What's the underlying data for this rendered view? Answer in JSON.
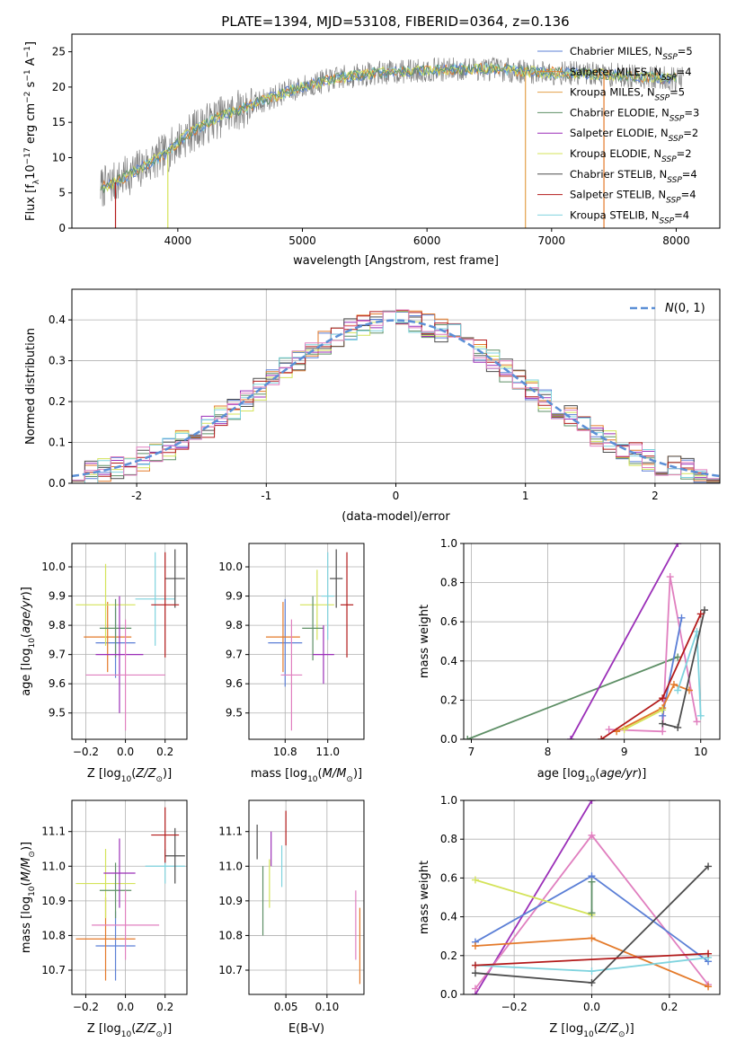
{
  "title": "PLATE=1394, MJD=53108, FIBERID=0364, z=0.136",
  "colors": {
    "chabrier_miles": "#5b7fd6",
    "salpeter_miles": "#e47a2a",
    "kroupa_miles": "#e3a04a",
    "chabrier_elodie": "#5e8f66",
    "salpeter_elodie": "#9b2fb8",
    "kroupa_elodie": "#d4e35a",
    "chabrier_stelib": "#4d4d4d",
    "salpeter_stelib": "#b31a1a",
    "kroupa_stelib": "#7fd3de",
    "pink": "#e07fbf",
    "gaussian": "#5b8fd6",
    "grid": "#b0b0b0",
    "spectrum_data": "#808080"
  },
  "chart_data": [
    {
      "id": "spectrum",
      "type": "line",
      "title": "PLATE=1394, MJD=53108, FIBERID=0364, z=0.136",
      "xlabel": "wavelength [Angstrom, rest frame]",
      "ylabel": "Flux [fλ10⁻¹⁷ erg cm⁻² s⁻¹ A⁻¹]",
      "xlim": [
        3150,
        8350
      ],
      "ylim": [
        0,
        27.5
      ],
      "xticks": [
        4000,
        5000,
        6000,
        7000,
        8000
      ],
      "yticks": [
        0,
        5,
        10,
        15,
        20,
        25
      ],
      "legend": {
        "position": "upper-right",
        "entries": [
          "Chabrier MILES, N_SSP=5",
          "Salpeter MILES, N_SSP=4",
          "Kroupa MILES, N_SSP=5",
          "Chabrier ELODIE, N_SSP=3",
          "Salpeter ELODIE, N_SSP=2",
          "Kroupa ELODIE, N_SSP=2",
          "Chabrier STELIB, N_SSP=4",
          "Salpeter STELIB, N_SSP=4",
          "Kroupa STELIB, N_SSP=4"
        ]
      },
      "continuum_x": [
        3350,
        3500,
        3700,
        3900,
        4000,
        4100,
        4300,
        4600,
        4900,
        5100,
        5300,
        5600,
        5900,
        6200,
        6500,
        6800,
        7100,
        7400,
        7700,
        8000,
        8100
      ],
      "continuum_y": [
        5.5,
        6.5,
        8.5,
        10.5,
        12.2,
        13.5,
        15.5,
        17.5,
        19.5,
        20.5,
        21.3,
        22.0,
        22.3,
        22.5,
        22.6,
        22.2,
        22.0,
        21.8,
        21.5,
        21.2,
        21.2
      ]
    },
    {
      "id": "residuals",
      "type": "histogram",
      "xlabel": "(data-model)/error",
      "ylabel": "Normed distribution",
      "xlim": [
        -2.5,
        2.5
      ],
      "ylim": [
        0,
        0.475
      ],
      "xticks": [
        -2,
        -1,
        0,
        1,
        2
      ],
      "yticks": [
        0.0,
        0.1,
        0.2,
        0.3,
        0.4
      ],
      "legend": {
        "position": "upper-right",
        "entries": [
          "N(0,1)"
        ]
      },
      "bin_width": 0.1
    },
    {
      "id": "age_vs_Z",
      "type": "errorbar",
      "xlabel": "Z [log10(Z/Z⊙)]",
      "ylabel": "age  [log10(age/yr)]",
      "xlim": [
        -0.27,
        0.31
      ],
      "ylim": [
        9.41,
        10.08
      ],
      "xticks": [
        -0.2,
        0.0,
        0.2
      ],
      "xticklabels": [
        "−0.2",
        "0.0",
        "0.2"
      ],
      "yticks": [
        9.5,
        9.6,
        9.7,
        9.8,
        9.9,
        10.0
      ],
      "points": [
        {
          "color": "chabrier_miles",
          "x": -0.05,
          "xerr": 0.1,
          "y": 9.74,
          "yerr": 0.12
        },
        {
          "color": "salpeter_miles",
          "x": -0.09,
          "xerr": 0.12,
          "y": 9.76,
          "yerr": 0.12
        },
        {
          "color": "kroupa_elodie",
          "x": -0.1,
          "xerr": 0.15,
          "y": 9.87,
          "yerr": 0.14
        },
        {
          "color": "chabrier_elodie",
          "x": -0.05,
          "xerr": 0.08,
          "y": 9.79,
          "yerr": 0.1
        },
        {
          "color": "salpeter_elodie",
          "x": -0.03,
          "xerr": 0.12,
          "y": 9.7,
          "yerr": 0.2
        },
        {
          "color": "pink",
          "x": 0.0,
          "xerr": 0.2,
          "y": 9.63,
          "yerr": 0.19
        },
        {
          "color": "kroupa_stelib",
          "x": 0.15,
          "xerr": 0.1,
          "y": 9.89,
          "yerr": 0.16
        },
        {
          "color": "chabrier_stelib",
          "x": 0.25,
          "xerr": 0.05,
          "y": 9.96,
          "yerr": 0.1
        },
        {
          "color": "salpeter_stelib",
          "x": 0.2,
          "xerr": 0.07,
          "y": 9.87,
          "yerr": 0.18
        }
      ]
    },
    {
      "id": "age_vs_mass",
      "type": "errorbar",
      "xlabel": "mass [log10(M/M⊙)]",
      "ylabel": "",
      "xlim": [
        10.63,
        11.17
      ],
      "ylim": [
        9.41,
        10.08
      ],
      "xticks": [
        10.8,
        11.0
      ],
      "xticklabels": [
        "10.8",
        "11.0"
      ],
      "yticks": [
        9.5,
        9.6,
        9.7,
        9.8,
        9.9,
        10.0
      ],
      "points": [
        {
          "color": "chabrier_miles",
          "x": 10.8,
          "xerr": 0.08,
          "y": 9.74,
          "yerr": 0.15
        },
        {
          "color": "salpeter_miles",
          "x": 10.79,
          "xerr": 0.08,
          "y": 9.76,
          "yerr": 0.12
        },
        {
          "color": "kroupa_elodie",
          "x": 10.95,
          "xerr": 0.08,
          "y": 9.87,
          "yerr": 0.12
        },
        {
          "color": "chabrier_elodie",
          "x": 10.93,
          "xerr": 0.05,
          "y": 9.79,
          "yerr": 0.11
        },
        {
          "color": "salpeter_elodie",
          "x": 10.98,
          "xerr": 0.05,
          "y": 9.7,
          "yerr": 0.1
        },
        {
          "color": "pink",
          "x": 10.83,
          "xerr": 0.05,
          "y": 9.63,
          "yerr": 0.19
        },
        {
          "color": "kroupa_stelib",
          "x": 11.0,
          "xerr": 0.03,
          "y": 9.9,
          "yerr": 0.15
        },
        {
          "color": "chabrier_stelib",
          "x": 11.04,
          "xerr": 0.03,
          "y": 9.96,
          "yerr": 0.1
        },
        {
          "color": "salpeter_stelib",
          "x": 11.09,
          "xerr": 0.03,
          "y": 9.87,
          "yerr": 0.18
        }
      ]
    },
    {
      "id": "mass_weight_vs_age",
      "type": "line",
      "xlabel": "age  [log10(age/yr)]",
      "ylabel": "mass weight",
      "xlim": [
        6.9,
        10.25
      ],
      "ylim": [
        0,
        1.0
      ],
      "xticks": [
        7,
        8,
        9,
        10
      ],
      "yticks": [
        0.0,
        0.2,
        0.4,
        0.6,
        0.8,
        1.0
      ],
      "series": [
        {
          "color": "chabrier_elodie",
          "x": [
            6.95,
            9.7
          ],
          "y": [
            0.0,
            0.42
          ]
        },
        {
          "color": "salpeter_elodie",
          "x": [
            8.3,
            9.7
          ],
          "y": [
            0.0,
            1.0
          ]
        },
        {
          "color": "pink",
          "x": [
            8.8,
            9.5,
            9.6,
            9.95
          ],
          "y": [
            0.05,
            0.04,
            0.83,
            0.09
          ]
        },
        {
          "color": "chabrier_miles",
          "x": [
            9.5,
            9.75
          ],
          "y": [
            0.12,
            0.62
          ]
        },
        {
          "color": "salpeter_miles",
          "x": [
            8.9,
            9.5,
            9.65,
            9.85
          ],
          "y": [
            0.04,
            0.16,
            0.28,
            0.25
          ]
        },
        {
          "color": "kroupa_elodie",
          "x": [
            9.0,
            9.5
          ],
          "y": [
            0.05,
            0.15
          ]
        },
        {
          "color": "kroupa_stelib",
          "x": [
            9.7,
            9.95,
            10.0
          ],
          "y": [
            0.25,
            0.55,
            0.12
          ]
        },
        {
          "color": "chabrier_stelib",
          "x": [
            9.5,
            9.7,
            10.05
          ],
          "y": [
            0.08,
            0.06,
            0.66
          ]
        },
        {
          "color": "salpeter_stelib",
          "x": [
            8.7,
            9.5,
            10.0
          ],
          "y": [
            0.0,
            0.21,
            0.64
          ]
        }
      ]
    },
    {
      "id": "mass_vs_Z",
      "type": "errorbar",
      "xlabel": "Z [log10(Z/Z⊙)]",
      "ylabel": "mass [log10(M/M⊙)]",
      "xlim": [
        -0.27,
        0.31
      ],
      "ylim": [
        10.63,
        11.19
      ],
      "xticks": [
        -0.2,
        0.0,
        0.2
      ],
      "xticklabels": [
        "−0.2",
        "0.0",
        "0.2"
      ],
      "yticks": [
        10.7,
        10.8,
        10.9,
        11.0,
        11.1
      ],
      "points": [
        {
          "color": "chabrier_miles",
          "x": -0.05,
          "xerr": 0.1,
          "y": 10.77,
          "yerr": 0.1
        },
        {
          "color": "salpeter_miles",
          "x": -0.1,
          "xerr": 0.15,
          "y": 10.79,
          "yerr": 0.12
        },
        {
          "color": "kroupa_elodie",
          "x": -0.1,
          "xerr": 0.15,
          "y": 10.95,
          "yerr": 0.1
        },
        {
          "color": "chabrier_elodie",
          "x": -0.05,
          "xerr": 0.08,
          "y": 10.93,
          "yerr": 0.08
        },
        {
          "color": "salpeter_elodie",
          "x": -0.03,
          "xerr": 0.08,
          "y": 10.98,
          "yerr": 0.1
        },
        {
          "color": "pink",
          "x": 0.0,
          "xerr": 0.17,
          "y": 10.83,
          "yerr": 0.1
        },
        {
          "color": "kroupa_stelib",
          "x": 0.2,
          "xerr": 0.1,
          "y": 11.0,
          "yerr": 0.05
        },
        {
          "color": "chabrier_stelib",
          "x": 0.25,
          "xerr": 0.05,
          "y": 11.03,
          "yerr": 0.08
        },
        {
          "color": "salpeter_stelib",
          "x": 0.2,
          "xerr": 0.07,
          "y": 11.09,
          "yerr": 0.08
        }
      ]
    },
    {
      "id": "mass_vs_ebv",
      "type": "errorbar",
      "xlabel": "E(B-V)",
      "ylabel": "",
      "xlim": [
        0.005,
        0.145
      ],
      "ylim": [
        10.63,
        11.19
      ],
      "xticks": [
        0.05,
        0.1
      ],
      "xticklabels": [
        "0.05",
        "0.10"
      ],
      "yticks": [
        10.7,
        10.8,
        10.9,
        11.0,
        11.1
      ],
      "points": [
        {
          "color": "chabrier_stelib",
          "x": 0.015,
          "xerr": 0,
          "y": 11.07,
          "yerr": 0.05
        },
        {
          "color": "chabrier_elodie",
          "x": 0.022,
          "xerr": 0,
          "y": 10.9,
          "yerr": 0.1
        },
        {
          "color": "kroupa_elodie",
          "x": 0.03,
          "xerr": 0,
          "y": 10.95,
          "yerr": 0.07
        },
        {
          "color": "salpeter_elodie",
          "x": 0.032,
          "xerr": 0,
          "y": 11.05,
          "yerr": 0.05
        },
        {
          "color": "kroupa_stelib",
          "x": 0.045,
          "xerr": 0,
          "y": 11.0,
          "yerr": 0.06
        },
        {
          "color": "salpeter_stelib",
          "x": 0.05,
          "xerr": 0,
          "y": 11.11,
          "yerr": 0.05
        },
        {
          "color": "pink",
          "x": 0.135,
          "xerr": 0,
          "y": 10.83,
          "yerr": 0.1
        },
        {
          "color": "salpeter_miles",
          "x": 0.14,
          "xerr": 0,
          "y": 10.77,
          "yerr": 0.11
        }
      ]
    },
    {
      "id": "mass_weight_vs_Z",
      "type": "line",
      "xlabel": "Z [log10(Z/Z⊙)]",
      "ylabel": "mass weight",
      "xlim": [
        -0.33,
        0.33
      ],
      "ylim": [
        0,
        1.0
      ],
      "xticks": [
        -0.2,
        0.0,
        0.2
      ],
      "xticklabels": [
        "−0.2",
        "0.0",
        "0.2"
      ],
      "yticks": [
        0.0,
        0.2,
        0.4,
        0.6,
        0.8,
        1.0
      ],
      "series": [
        {
          "color": "salpeter_elodie",
          "x": [
            -0.3,
            0.0
          ],
          "y": [
            0.0,
            1.0
          ]
        },
        {
          "color": "pink",
          "x": [
            -0.3,
            0.0,
            0.3
          ],
          "y": [
            0.03,
            0.82,
            0.05
          ]
        },
        {
          "color": "chabrier_miles",
          "x": [
            -0.3,
            0.0,
            0.3
          ],
          "y": [
            0.27,
            0.61,
            0.17
          ]
        },
        {
          "color": "kroupa_elodie",
          "x": [
            -0.3,
            0.0
          ],
          "y": [
            0.59,
            0.41
          ]
        },
        {
          "color": "salpeter_miles",
          "x": [
            -0.3,
            0.0,
            0.3
          ],
          "y": [
            0.25,
            0.29,
            0.04
          ]
        },
        {
          "color": "chabrier_elodie",
          "x": [
            0.0,
            0.0
          ],
          "y": [
            0.42,
            0.58
          ]
        },
        {
          "color": "kroupa_stelib",
          "x": [
            -0.3,
            0.0,
            0.3
          ],
          "y": [
            0.15,
            0.12,
            0.19
          ]
        },
        {
          "color": "chabrier_stelib",
          "x": [
            -0.3,
            0.0,
            0.3
          ],
          "y": [
            0.11,
            0.06,
            0.66
          ]
        },
        {
          "color": "salpeter_stelib",
          "x": [
            -0.3,
            0.3
          ],
          "y": [
            0.15,
            0.21
          ]
        }
      ]
    }
  ]
}
